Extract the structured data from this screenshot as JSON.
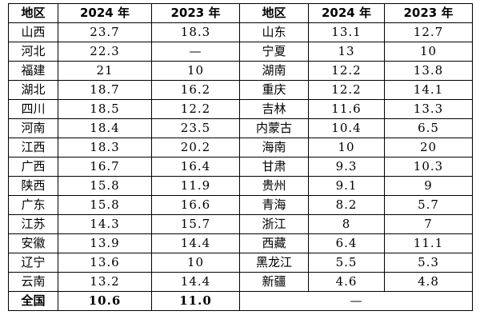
{
  "headers": [
    "地区",
    "2024 年",
    "2023 年",
    "地区",
    "2024 年",
    "2023 年"
  ],
  "rows": [
    {
      "left": {
        "region": "山西",
        "y2024": "23.7",
        "y2023": "18.3"
      },
      "right": {
        "region": "山东",
        "y2024": "13.1",
        "y2023": "12.7"
      }
    },
    {
      "left": {
        "region": "河北",
        "y2024": "22.3",
        "y2023": "—"
      },
      "right": {
        "region": "宁夏",
        "y2024": "13",
        "y2023": "10"
      }
    },
    {
      "left": {
        "region": "福建",
        "y2024": "21",
        "y2023": "10"
      },
      "right": {
        "region": "湖南",
        "y2024": "12.2",
        "y2023": "13.8"
      }
    },
    {
      "left": {
        "region": "湖北",
        "y2024": "18.7",
        "y2023": "16.2"
      },
      "right": {
        "region": "重庆",
        "y2024": "12.2",
        "y2023": "14.1"
      }
    },
    {
      "left": {
        "region": "四川",
        "y2024": "18.5",
        "y2023": "12.2"
      },
      "right": {
        "region": "吉林",
        "y2024": "11.6",
        "y2023": "13.3"
      }
    },
    {
      "left": {
        "region": "河南",
        "y2024": "18.4",
        "y2023": "23.5"
      },
      "right": {
        "region": "内蒙古",
        "y2024": "10.4",
        "y2023": "6.5"
      }
    },
    {
      "left": {
        "region": "江西",
        "y2024": "18.3",
        "y2023": "20.2"
      },
      "right": {
        "region": "海南",
        "y2024": "10",
        "y2023": "20"
      }
    },
    {
      "left": {
        "region": "广西",
        "y2024": "16.7",
        "y2023": "16.4"
      },
      "right": {
        "region": "甘肃",
        "y2024": "9.3",
        "y2023": "10.3"
      }
    },
    {
      "left": {
        "region": "陕西",
        "y2024": "15.8",
        "y2023": "11.9"
      },
      "right": {
        "region": "贵州",
        "y2024": "9.1",
        "y2023": "9"
      }
    },
    {
      "left": {
        "region": "广东",
        "y2024": "15.8",
        "y2023": "16.6"
      },
      "right": {
        "region": "青海",
        "y2024": "8.2",
        "y2023": "5.7"
      }
    },
    {
      "left": {
        "region": "江苏",
        "y2024": "14.3",
        "y2023": "15.7"
      },
      "right": {
        "region": "浙江",
        "y2024": "8",
        "y2023": "7"
      }
    },
    {
      "left": {
        "region": "安徽",
        "y2024": "13.9",
        "y2023": "14.4"
      },
      "right": {
        "region": "西藏",
        "y2024": "6.4",
        "y2023": "11.1"
      }
    },
    {
      "left": {
        "region": "辽宁",
        "y2024": "13.6",
        "y2023": "10"
      },
      "right": {
        "region": "黑龙江",
        "y2024": "5.5",
        "y2023": "5.3"
      }
    },
    {
      "left": {
        "region": "云南",
        "y2024": "13.2",
        "y2023": "14.4"
      },
      "right": {
        "region": "新疆",
        "y2024": "4.6",
        "y2023": "4.8"
      }
    }
  ],
  "total": {
    "region": "全国",
    "y2024": "10.6",
    "y2023": "11.0",
    "right": "—"
  }
}
